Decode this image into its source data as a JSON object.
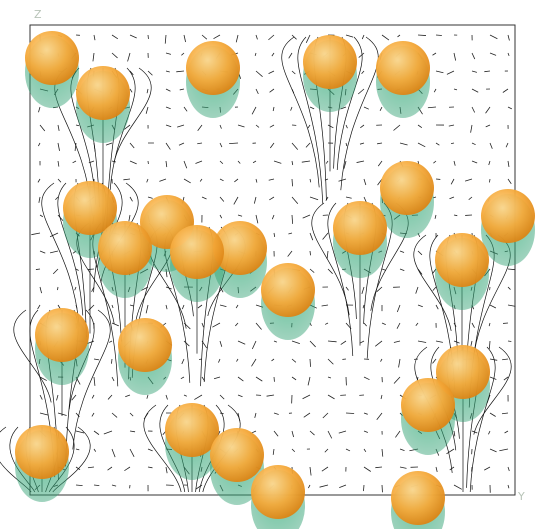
{
  "axes": {
    "z": "Z",
    "y": "Y"
  }
}
